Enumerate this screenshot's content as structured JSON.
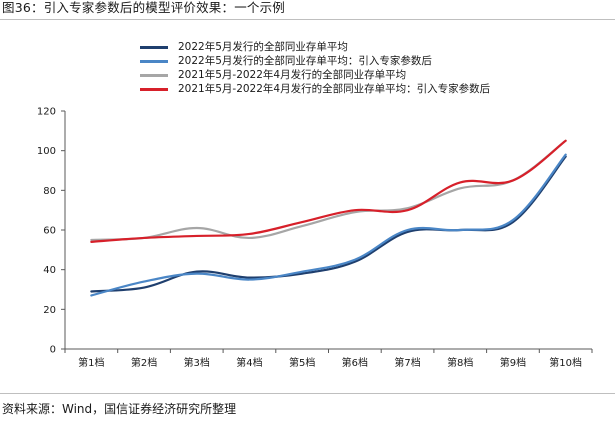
{
  "figure": {
    "title": "图36：引入专家参数后的模型评价效果：一个示例",
    "source": "资料来源：Wind，国信证券经济研究所整理"
  },
  "chart_data": {
    "type": "line",
    "categories": [
      "第1档",
      "第2档",
      "第3档",
      "第4档",
      "第5档",
      "第6档",
      "第7档",
      "第8档",
      "第9档",
      "第10档"
    ],
    "ylim": [
      0,
      120
    ],
    "yticks": [
      0,
      20,
      40,
      60,
      80,
      100,
      120
    ],
    "grid": false,
    "legend_position": "top-left",
    "series": [
      {
        "name": "2022年5月发行的全部同业存单平均",
        "color": "#1f3f6e",
        "values": [
          29,
          31,
          39,
          36,
          38,
          44,
          59,
          60,
          64,
          97
        ]
      },
      {
        "name": "2022年5月发行的全部同业存单平均：引入专家参数后",
        "color": "#4a86c6",
        "values": [
          27,
          34,
          38,
          35,
          39,
          45,
          60,
          60,
          65,
          98
        ]
      },
      {
        "name": "2021年5月-2022年4月发行的全部同业存单平均",
        "color": "#a6a6a6",
        "values": [
          55,
          56,
          61,
          56,
          62,
          69,
          71,
          81,
          85,
          105
        ]
      },
      {
        "name": "2021年5月-2022年4月发行的全部同业存单平均：引入专家参数后",
        "color": "#d7202a",
        "values": [
          54,
          56,
          57,
          58,
          64,
          70,
          70,
          84,
          85,
          105
        ]
      }
    ]
  }
}
